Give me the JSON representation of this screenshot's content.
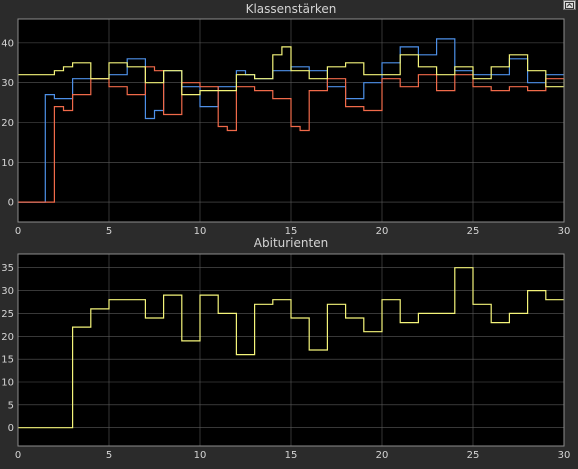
{
  "toolbar": {
    "undock_icon": "undock-icon"
  },
  "colors": {
    "blue": "#4d90e8",
    "red": "#f06a4a",
    "yellow": "#f4f47a"
  },
  "chart_data": [
    {
      "type": "line",
      "step": "post",
      "title": "Klassenstärken",
      "xlabel": "",
      "ylabel": "",
      "xlim": [
        0,
        30
      ],
      "ylim": [
        -5,
        46
      ],
      "xticks": [
        0,
        5,
        10,
        15,
        20,
        25,
        30
      ],
      "yticks": [
        0,
        10,
        20,
        30,
        40
      ],
      "xtick_labels": [
        "0",
        "5",
        "10",
        "15",
        "20",
        "25",
        "30"
      ],
      "ytick_labels": [
        "0",
        "10",
        "20",
        "30",
        "40"
      ],
      "grid": true,
      "series": [
        {
          "color": "#4d90e8",
          "x": [
            0,
            1,
            1.5,
            2,
            3,
            5,
            6,
            7,
            7.5,
            8,
            9,
            10,
            11,
            12,
            12.5,
            13,
            14,
            15,
            16,
            17,
            18,
            19,
            20,
            21,
            22,
            23,
            24,
            25,
            26,
            27,
            28,
            29,
            30
          ],
          "y": [
            0,
            0,
            27,
            26,
            31,
            32,
            36,
            21,
            23,
            33,
            29,
            24,
            29,
            33,
            32,
            31,
            33,
            34,
            33,
            29,
            26,
            30,
            35,
            39,
            37,
            41,
            33,
            32,
            32,
            36,
            30,
            32,
            32
          ]
        },
        {
          "color": "#f06a4a",
          "x": [
            0,
            2,
            2.5,
            3,
            4,
            5,
            6,
            7,
            7.5,
            8,
            9,
            10,
            11,
            11.5,
            12,
            13,
            14,
            15,
            15.5,
            16,
            17,
            18,
            19,
            20,
            21,
            22,
            23,
            24,
            25,
            26,
            27,
            28,
            29,
            30
          ],
          "y": [
            0,
            24,
            23,
            27,
            31,
            29,
            27,
            34,
            33,
            22,
            30,
            29,
            19,
            18,
            29,
            28,
            26,
            19,
            18,
            28,
            31,
            24,
            23,
            31,
            29,
            32,
            28,
            32,
            29,
            28,
            29,
            28,
            31,
            31
          ]
        },
        {
          "color": "#f4f47a",
          "x": [
            0,
            1.5,
            2,
            2.5,
            3,
            4,
            5,
            6,
            7,
            8,
            9,
            10,
            11,
            12,
            13,
            14,
            14.5,
            15,
            16,
            17,
            18,
            19,
            20,
            21,
            22,
            23,
            24,
            25,
            26,
            27,
            28,
            29,
            30
          ],
          "y": [
            32,
            32,
            33,
            34,
            35,
            31,
            35,
            34,
            30,
            33,
            27,
            28,
            28,
            32,
            31,
            37,
            39,
            33,
            31,
            34,
            35,
            32,
            32,
            37,
            34,
            32,
            34,
            31,
            34,
            37,
            33,
            29,
            31
          ]
        }
      ]
    },
    {
      "type": "line",
      "step": "post",
      "title": "Abiturienten",
      "xlabel": "",
      "ylabel": "",
      "xlim": [
        0,
        30
      ],
      "ylim": [
        -4,
        38
      ],
      "xticks": [
        0,
        5,
        10,
        15,
        20,
        25,
        30
      ],
      "yticks": [
        0,
        5,
        10,
        15,
        20,
        25,
        30,
        35
      ],
      "xtick_labels": [
        "0",
        "5",
        "10",
        "15",
        "20",
        "25",
        "30"
      ],
      "ytick_labels": [
        "0",
        "5",
        "10",
        "15",
        "20",
        "25",
        "30",
        "35"
      ],
      "grid": true,
      "series": [
        {
          "color": "#f4f47a",
          "x": [
            0,
            3,
            4,
            5,
            6,
            7,
            8,
            9,
            10,
            11,
            12,
            13,
            14,
            15,
            16,
            17,
            18,
            19,
            20,
            21,
            22,
            23,
            24,
            25,
            26,
            27,
            28,
            29,
            30
          ],
          "y": [
            0,
            22,
            26,
            28,
            28,
            24,
            29,
            19,
            29,
            25,
            16,
            27,
            28,
            24,
            17,
            27,
            24,
            21,
            28,
            23,
            25,
            25,
            35,
            27,
            23,
            25,
            30,
            28,
            28
          ]
        }
      ]
    }
  ]
}
